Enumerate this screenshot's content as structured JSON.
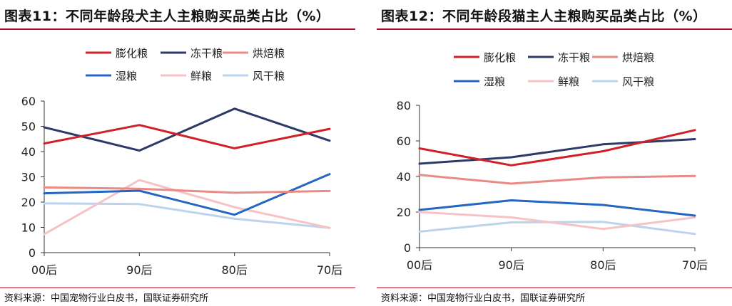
{
  "source_label": "资料来源：中国宠物行业白皮书，国联证券研究所",
  "chart_data": [
    {
      "type": "line",
      "title": "图表11：不同年龄段犬主人主粮购买品类占比（%）",
      "categories": [
        "00后",
        "90后",
        "80后",
        "70后"
      ],
      "ylim": [
        0,
        60
      ],
      "yticks": [
        0,
        10,
        20,
        30,
        40,
        50,
        60
      ],
      "xlabel": "",
      "ylabel": "",
      "legend": "top",
      "series": [
        {
          "name": "膨化粮",
          "color": "#d0202a",
          "values": [
            43.2,
            50.5,
            41.3,
            49.0
          ]
        },
        {
          "name": "冻干粮",
          "color": "#2b3a67",
          "values": [
            49.6,
            40.4,
            57.0,
            44.3
          ]
        },
        {
          "name": "烘焙粮",
          "color": "#e88a85",
          "values": [
            25.8,
            25.3,
            23.7,
            24.4
          ]
        },
        {
          "name": "湿粮",
          "color": "#2466c0",
          "values": [
            23.5,
            24.5,
            15.0,
            31.1
          ]
        },
        {
          "name": "鲜粮",
          "color": "#f6c2c5",
          "values": [
            7.3,
            28.7,
            18.0,
            9.8
          ]
        },
        {
          "name": "风干粮",
          "color": "#bcd3ec",
          "values": [
            19.5,
            19.2,
            13.4,
            9.8
          ]
        }
      ]
    },
    {
      "type": "line",
      "title": "图表12：不同年龄段猫主人主粮购买品类占比（%）",
      "categories": [
        "00后",
        "90后",
        "80后",
        "70后"
      ],
      "ylim": [
        0,
        80
      ],
      "yticks": [
        0,
        20,
        40,
        60,
        80
      ],
      "xlabel": "",
      "ylabel": "",
      "legend": "top",
      "series": [
        {
          "name": "膨化粮",
          "color": "#d0202a",
          "values": [
            55.8,
            46.3,
            54.2,
            66.1
          ]
        },
        {
          "name": "冻干粮",
          "color": "#2b3a67",
          "values": [
            47.2,
            50.8,
            58.1,
            61.0
          ]
        },
        {
          "name": "烘焙粮",
          "color": "#e88a85",
          "values": [
            40.9,
            36.0,
            39.5,
            40.3
          ]
        },
        {
          "name": "湿粮",
          "color": "#2466c0",
          "values": [
            21.2,
            26.6,
            24.0,
            18.0
          ]
        },
        {
          "name": "鲜粮",
          "color": "#f6c2c5",
          "values": [
            20.0,
            17.0,
            10.5,
            17.0
          ]
        },
        {
          "name": "风干粮",
          "color": "#bcd3ec",
          "values": [
            9.0,
            14.2,
            14.5,
            7.7
          ]
        }
      ]
    }
  ]
}
